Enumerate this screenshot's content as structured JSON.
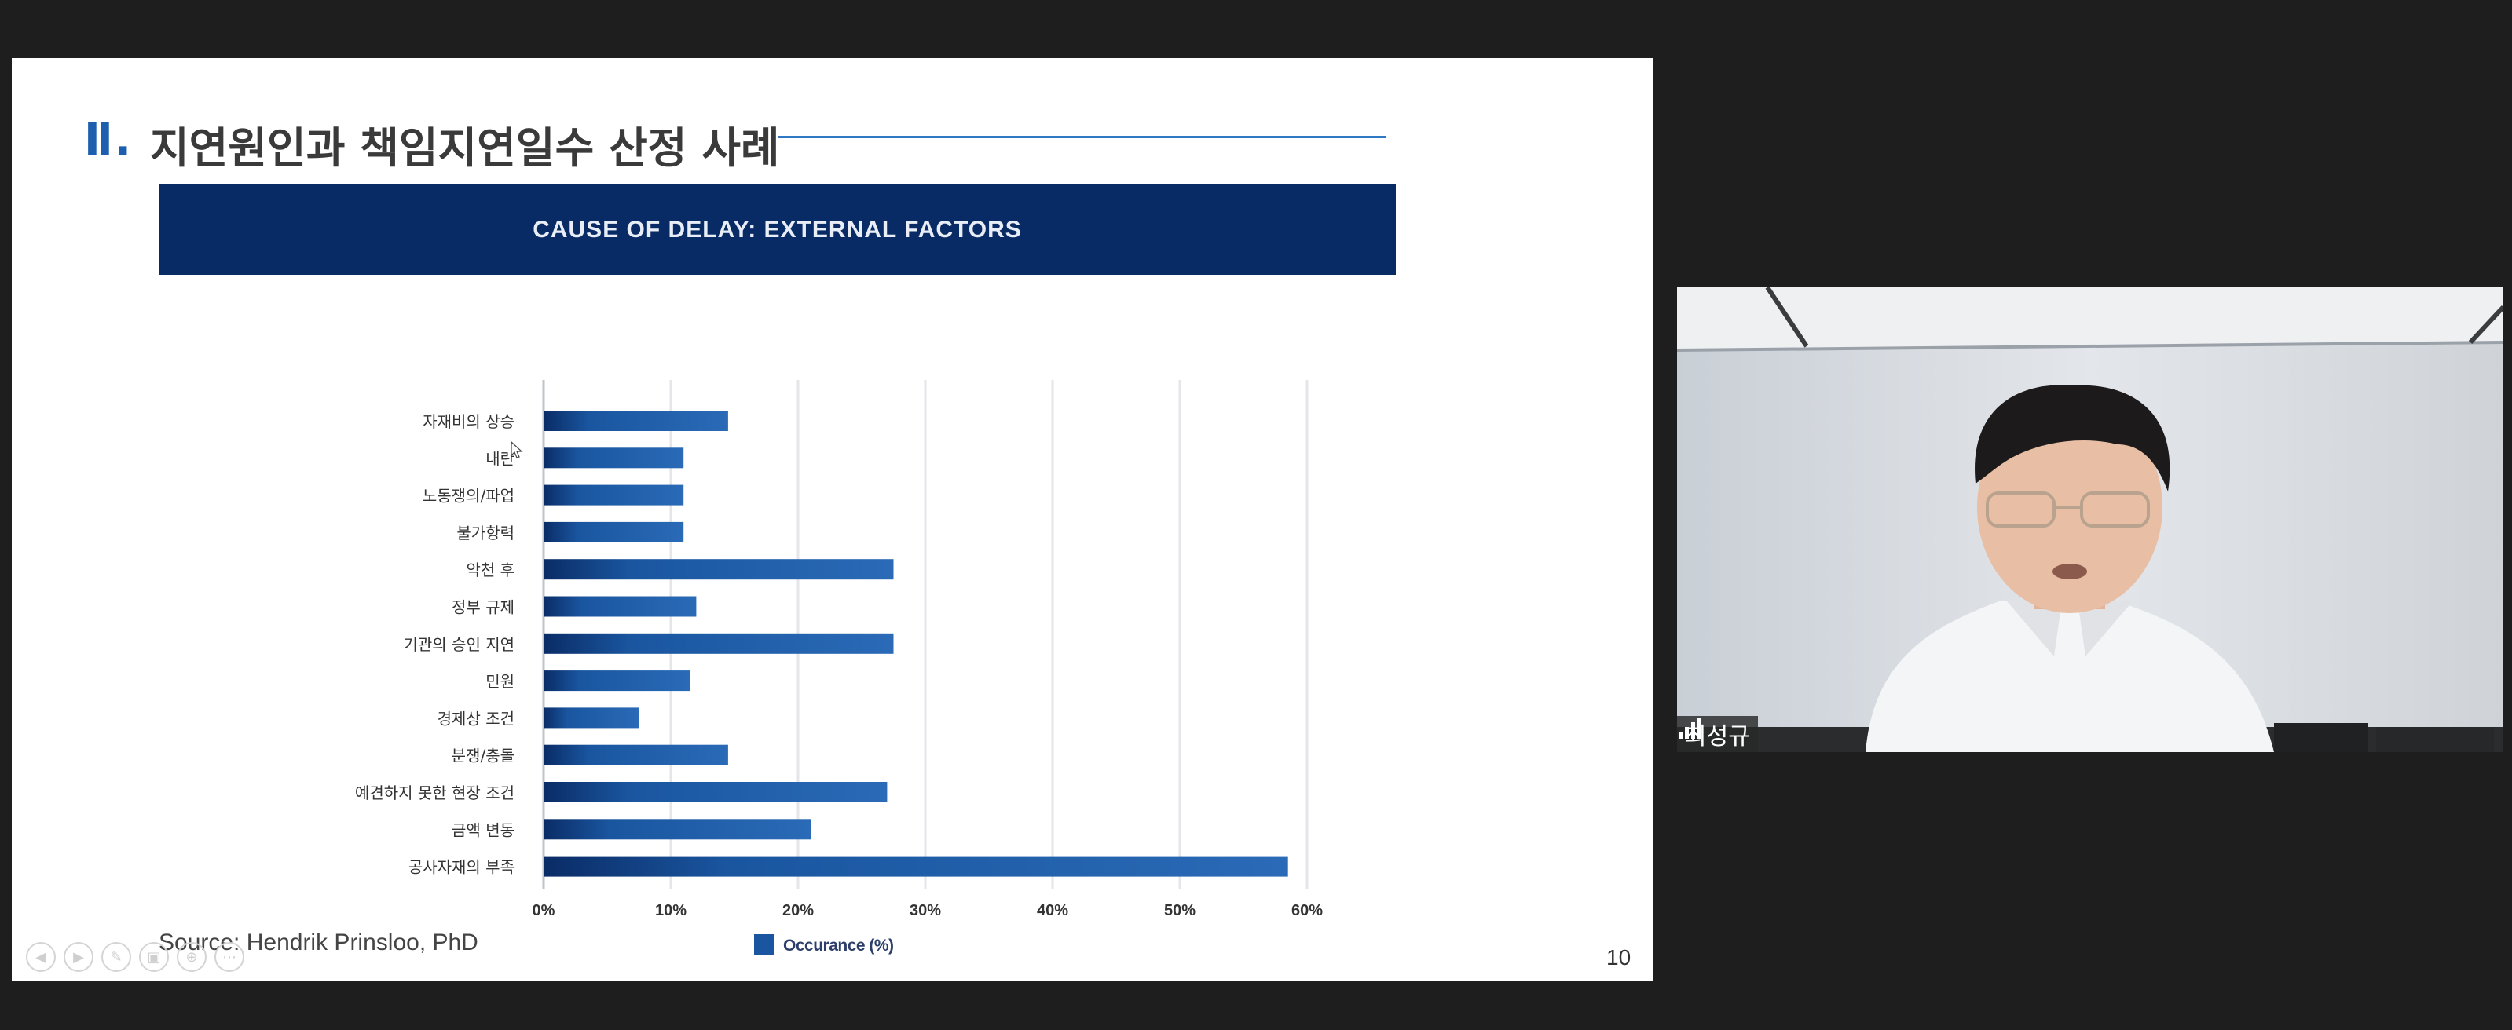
{
  "slide": {
    "section_number": "Ⅱ.",
    "section_title": "지연원인과 책임지연일수 산정 사례",
    "banner_title": "CAUSE OF DELAY: EXTERNAL FACTORS",
    "source": "Source: Hendrik Prinsloo, PhD",
    "page_number": "10"
  },
  "chart_data": {
    "type": "bar",
    "orientation": "horizontal",
    "categories": [
      "자재비의 상승",
      "내란",
      "노동쟁의/파업",
      "불가항력",
      "악천 후",
      "정부 규제",
      "기관의 승인 지연",
      "민원",
      "경제상 조건",
      "분쟁/충돌",
      "예견하지 못한 현장 조건",
      "금액 변동",
      "공사자재의 부족"
    ],
    "series": [
      {
        "name": "Occurance (%)",
        "values": [
          14.5,
          11,
          11,
          11,
          27.5,
          12,
          27.5,
          11.5,
          7.5,
          14.5,
          27,
          21,
          58.5
        ]
      }
    ],
    "xlim": [
      0,
      60
    ],
    "x_ticks": [
      "0%",
      "10%",
      "20%",
      "30%",
      "40%",
      "50%",
      "60%"
    ],
    "legend_position": "bottom",
    "grid": true,
    "bar_color": "#1a56a0",
    "bar_color_dark": "#0a2c66"
  },
  "video": {
    "participant_name": "최성규",
    "icons": [
      "signal-bars-icon"
    ]
  },
  "controls": {
    "icons": [
      "prev-slide-icon",
      "next-slide-icon",
      "pen-icon",
      "slides-icon",
      "zoom-icon",
      "more-icon"
    ]
  }
}
